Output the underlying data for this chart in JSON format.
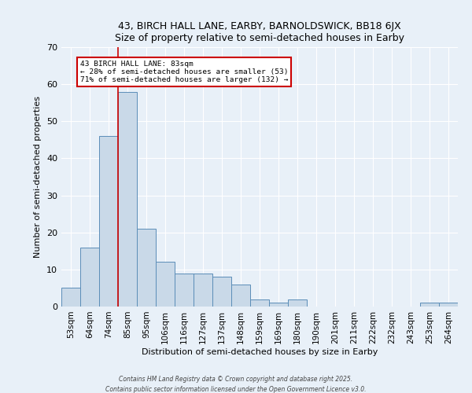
{
  "title1": "43, BIRCH HALL LANE, EARBY, BARNOLDSWICK, BB18 6JX",
  "title2": "Size of property relative to semi-detached houses in Earby",
  "xlabel": "Distribution of semi-detached houses by size in Earby",
  "ylabel": "Number of semi-detached properties",
  "categories": [
    "53sqm",
    "64sqm",
    "74sqm",
    "85sqm",
    "95sqm",
    "106sqm",
    "116sqm",
    "127sqm",
    "137sqm",
    "148sqm",
    "159sqm",
    "169sqm",
    "180sqm",
    "190sqm",
    "201sqm",
    "211sqm",
    "222sqm",
    "232sqm",
    "243sqm",
    "253sqm",
    "264sqm"
  ],
  "values": [
    5,
    16,
    46,
    58,
    21,
    12,
    9,
    9,
    8,
    6,
    2,
    1,
    2,
    0,
    0,
    0,
    0,
    0,
    0,
    1,
    1
  ],
  "bar_color": "#c9d9e8",
  "bar_edge_color": "#5b8db8",
  "bg_color": "#e8f0f8",
  "vline_x": 2.5,
  "vline_color": "#cc0000",
  "annotation_title": "43 BIRCH HALL LANE: 83sqm",
  "annotation_line1": "← 28% of semi-detached houses are smaller (53)",
  "annotation_line2": "71% of semi-detached houses are larger (132) →",
  "annotation_box_color": "#cc0000",
  "ylim": [
    0,
    70
  ],
  "yticks": [
    0,
    10,
    20,
    30,
    40,
    50,
    60,
    70
  ],
  "footer1": "Contains HM Land Registry data © Crown copyright and database right 2025.",
  "footer2": "Contains public sector information licensed under the Open Government Licence v3.0."
}
